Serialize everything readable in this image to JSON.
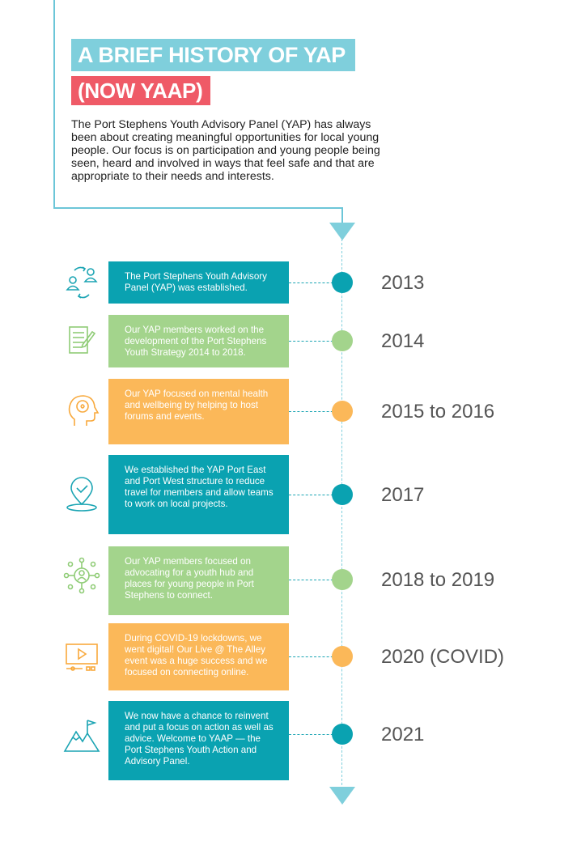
{
  "header": {
    "title_line1": "A BRIEF HISTORY OF YAP",
    "title_line2": "(NOW YAAP)",
    "intro": "The Port Stephens Youth Advisory Panel (YAP) has always been about creating meaningful opportunities for local young people. Our focus is on participation and young people being seen, heard and involved in ways that feel safe and that are appropriate to their needs and interests."
  },
  "colors": {
    "teal": "#0aa2b1",
    "green": "#a3d48c",
    "orange": "#fbb859",
    "light_blue": "#7fcfdc",
    "red": "#ef5a67"
  },
  "timeline": [
    {
      "year": "2013",
      "text": "The Port Stephens Youth Advisory Panel (YAP) was established.",
      "color": "teal",
      "icon": "people-exchange-icon"
    },
    {
      "year": "2014",
      "text": "Our YAP members worked on the development of the Port Stephens Youth Strategy 2014 to 2018.",
      "color": "green",
      "icon": "document-pencil-icon"
    },
    {
      "year": "2015 to 2016",
      "text": "Our YAP focused on mental health and wellbeing by helping to host forums and events.",
      "color": "orange",
      "icon": "head-mind-icon"
    },
    {
      "year": "2017",
      "text": "We established the YAP Port East and Port West structure to reduce travel for members and allow teams to work on local projects.",
      "color": "teal",
      "icon": "location-pin-icon"
    },
    {
      "year": "2018 to 2019",
      "text": "Our YAP members focused on advocating for a youth hub and places for young people in Port Stephens to connect.",
      "color": "green",
      "icon": "network-person-icon"
    },
    {
      "year": "2020 (COVID)",
      "text": "During COVID-19 lockdowns, we went digital! Our Live @ The Alley event was a huge success and we focused on connecting online.",
      "color": "orange",
      "icon": "video-player-icon"
    },
    {
      "year": "2021",
      "text": "We now have a chance to reinvent and put a focus on action as well as advice. Welcome to YAAP — the Port Stephens Youth Action and Advisory Panel.",
      "color": "teal",
      "icon": "mountain-flag-icon"
    }
  ]
}
